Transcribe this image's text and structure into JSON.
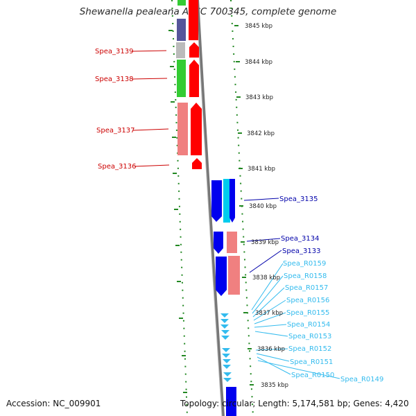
{
  "title": "Shewanella pealeana ATCC 700345, complete genome",
  "footer": {
    "accession": "Accession: NC_009901",
    "summary": "Topology: circular; Length: 5,174,581 bp; Genes: 4,420"
  },
  "kbp_labels": [
    "3845 kbp",
    "3844 kbp",
    "3843 kbp",
    "3842 kbp",
    "3841 kbp",
    "3840 kbp",
    "3839 kbp",
    "3838 kbp",
    "3837 kbp",
    "3836 kbp",
    "3835 kbp"
  ],
  "gene_labels": {
    "left": [
      "Spea_3139",
      "Spea_3138",
      "Spea_3137",
      "Spea_3136"
    ],
    "right_dark": [
      "Spea_3135",
      "Spea_3134",
      "Spea_3133"
    ],
    "right_rna": [
      "Spea_R0159",
      "Spea_R0158",
      "Spea_R0157",
      "Spea_R0156",
      "Spea_R0155",
      "Spea_R0154",
      "Spea_R0153",
      "Spea_R0152",
      "Spea_R0151",
      "Spea_R0150",
      "Spea_R0149"
    ]
  },
  "colors": {
    "red": "#ff0000",
    "pink": "#f08080",
    "green": "#33cc33",
    "purple": "#55559a",
    "gray": "#bbbbbb",
    "blue": "#0000ee",
    "cyan": "#00ccee",
    "light_blue": "#33bbee",
    "label_red": "#cc0000",
    "label_blue": "#0000aa",
    "label_cyan": "#33bbee",
    "tick_green": "#228822"
  }
}
